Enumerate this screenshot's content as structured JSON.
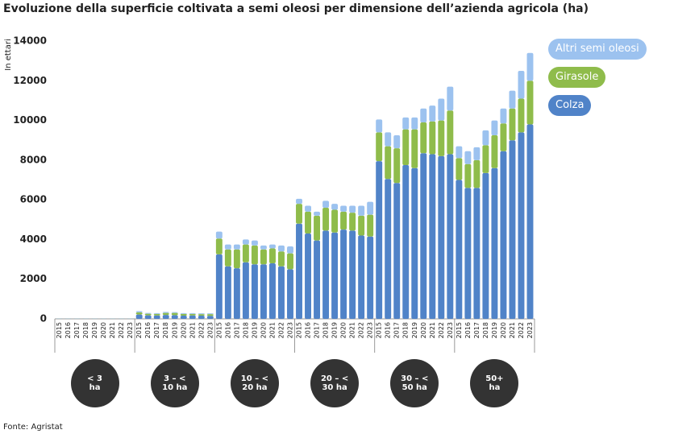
{
  "chart_data": {
    "type": "stacked-bar",
    "title": "Evoluzione della superficie coltivata a semi oleosi per dimensione dell’azienda agricola (ha)",
    "y_label": "In ettari",
    "source": "Fonte: Agristat",
    "groups": [
      {
        "name": "< 3 ha",
        "categories": [
          "2015",
          "2016",
          "2017",
          "2018",
          "2019",
          "2020",
          "2021",
          "2022",
          "2023"
        ]
      },
      {
        "name": "3 – < 10 ha",
        "categories": [
          "2015",
          "2016",
          "2017",
          "2018",
          "2019",
          "2020",
          "2021",
          "2022",
          "2023"
        ]
      },
      {
        "name": "10 – < 20 ha",
        "categories": [
          "2015",
          "2016",
          "2017",
          "2018",
          "2019",
          "2020",
          "2021",
          "2022",
          "2023"
        ]
      },
      {
        "name": "20 – < 30 ha",
        "categories": [
          "2015",
          "2016",
          "2017",
          "2018",
          "2019",
          "2020",
          "2021",
          "2022",
          "2023"
        ]
      },
      {
        "name": "30 – < 50 ha",
        "categories": [
          "2015",
          "2016",
          "2017",
          "2018",
          "2019",
          "2020",
          "2021",
          "2022",
          "2023"
        ]
      },
      {
        "name": "50+ ha",
        "categories": [
          "2015",
          "2016",
          "2017",
          "2018",
          "2019",
          "2020",
          "2021",
          "2022",
          "2023"
        ]
      }
    ],
    "series": [
      {
        "name": "Colza",
        "color": "#5083c8",
        "values": [
          10,
          10,
          10,
          10,
          10,
          10,
          10,
          10,
          10,
          220,
          180,
          170,
          200,
          190,
          160,
          170,
          160,
          150,
          3250,
          2650,
          2550,
          2850,
          2750,
          2750,
          2800,
          2650,
          2500,
          4800,
          4300,
          3950,
          4450,
          4350,
          4500,
          4450,
          4200,
          4150,
          7950,
          7050,
          6850,
          7750,
          7600,
          8350,
          8300,
          8200,
          8300,
          7000,
          6600,
          6600,
          7350,
          7600,
          8450,
          9000,
          9400,
          9800
        ]
      },
      {
        "name": "Girasole",
        "color": "#8fbc4b",
        "values": [
          5,
          5,
          5,
          5,
          5,
          5,
          5,
          5,
          5,
          110,
          80,
          80,
          100,
          110,
          90,
          80,
          80,
          90,
          800,
          850,
          950,
          900,
          950,
          750,
          750,
          750,
          800,
          1000,
          1100,
          1250,
          1150,
          1150,
          900,
          900,
          1000,
          1100,
          1450,
          1650,
          1750,
          1800,
          1950,
          1550,
          1650,
          1800,
          2200,
          1100,
          1200,
          1400,
          1400,
          1650,
          1400,
          1600,
          1700,
          2200
        ]
      },
      {
        "name": "Altri semi oleosi",
        "color": "#9cc2ef",
        "values": [
          5,
          5,
          5,
          5,
          5,
          5,
          5,
          5,
          5,
          60,
          40,
          40,
          50,
          40,
          40,
          40,
          40,
          40,
          350,
          250,
          250,
          250,
          250,
          200,
          200,
          300,
          350,
          250,
          300,
          200,
          350,
          300,
          300,
          350,
          500,
          650,
          650,
          700,
          650,
          600,
          600,
          700,
          800,
          1100,
          1200,
          600,
          650,
          650,
          750,
          750,
          750,
          900,
          1400,
          1400
        ]
      }
    ],
    "ylim": [
      0,
      14000
    ],
    "yticks": [
      0,
      2000,
      4000,
      6000,
      8000,
      10000,
      12000,
      14000
    ],
    "grid": false
  }
}
